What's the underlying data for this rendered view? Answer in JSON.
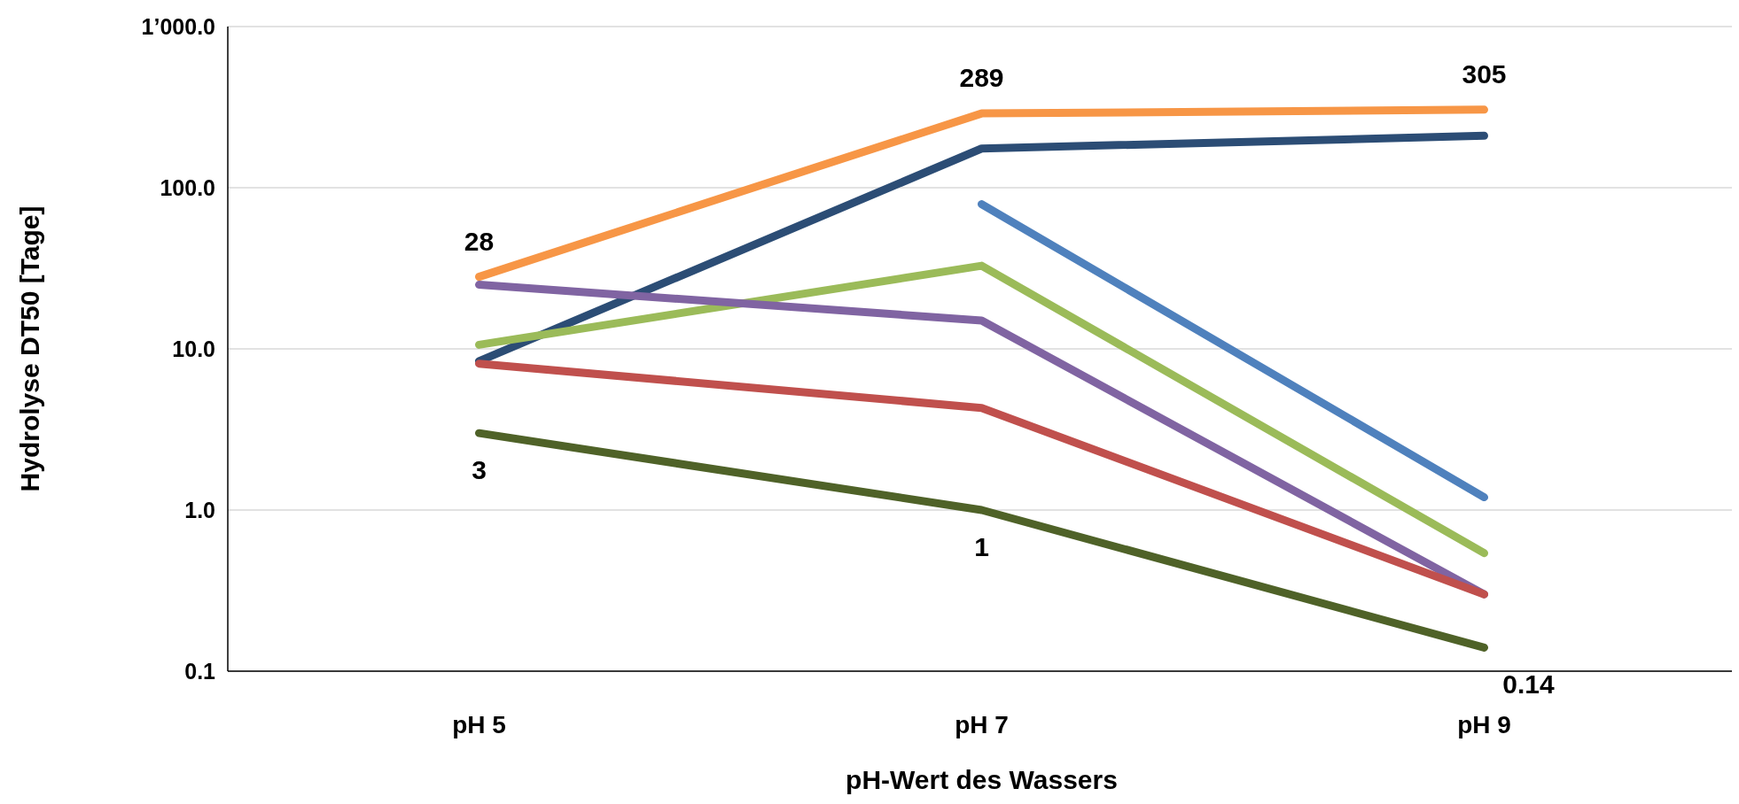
{
  "chart_data": {
    "type": "line",
    "xlabel": "pH-Wert des Wassers",
    "ylabel": "Hydrolyse DT50 [Tage]",
    "categories": [
      "pH 5",
      "pH 7",
      "pH 9"
    ],
    "log": true,
    "ylim": [
      0.1,
      1000
    ],
    "yticks": [
      {
        "value": 0.1,
        "label": "0.1"
      },
      {
        "value": 1,
        "label": "1.0"
      },
      {
        "value": 10,
        "label": "10.0"
      },
      {
        "value": 100,
        "label": "100.0"
      },
      {
        "value": 1000,
        "label": "1’000.0"
      }
    ],
    "grid": "y",
    "marker": "none",
    "line_style": "solid",
    "series": [
      {
        "color": "#f79646",
        "values": [
          28,
          289,
          305
        ],
        "value_labels": [
          "28",
          "289",
          "305"
        ]
      },
      {
        "color": "#2c4d75",
        "values": [
          8.4,
          175,
          210
        ]
      },
      {
        "color": "#4f81bd",
        "values": [
          null,
          79,
          1.2
        ]
      },
      {
        "color": "#9bbb59",
        "values": [
          10.6,
          32.8,
          0.54
        ]
      },
      {
        "color": "#8064a2",
        "values": [
          25,
          15,
          0.3
        ]
      },
      {
        "color": "#c0504d",
        "values": [
          8.1,
          4.3,
          0.3
        ]
      },
      {
        "color": "#4f6228",
        "values": [
          3,
          1,
          0.14
        ],
        "value_labels": [
          "3",
          "1",
          "0.14"
        ]
      }
    ]
  }
}
